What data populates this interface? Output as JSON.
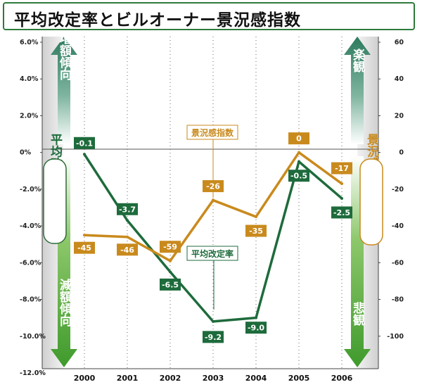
{
  "title": "平均改定率とビルオーナー景況感指数",
  "chart_data": {
    "type": "line",
    "categories": [
      "2000",
      "2001",
      "2002",
      "2003",
      "2004",
      "2005",
      "2006"
    ],
    "series": [
      {
        "name": "平均改定率",
        "axis": "left",
        "color": "#1e6b3c",
        "values": [
          -0.1,
          -3.7,
          -6.5,
          -9.2,
          -9.0,
          -0.5,
          -2.5
        ],
        "labels": [
          "-0.1",
          "-3.7",
          "-6.5",
          "-9.2",
          "-9.0",
          "-0.5",
          "-2.5"
        ]
      },
      {
        "name": "景況感指数",
        "axis": "right",
        "color": "#c98a1d",
        "values": [
          -45,
          -46,
          -59,
          -26,
          -35,
          0,
          -17
        ],
        "labels": [
          "-45",
          "-46",
          "-59",
          "-26",
          "-35",
          "0",
          "-17"
        ]
      }
    ],
    "left_axis": {
      "ticks": [
        "6.0%",
        "4.0%",
        "2.0%",
        "0%",
        "-2.0%",
        "-4.0%",
        "-6.0%",
        "-8.0%",
        "-10.0%",
        "-12.0%"
      ],
      "values": [
        6,
        4,
        2,
        0,
        -2,
        -4,
        -6,
        -8,
        -10,
        -12
      ],
      "ylim": [
        -12,
        6
      ]
    },
    "right_axis": {
      "ticks": [
        "60",
        "40",
        "20",
        "0",
        "-20",
        "-40",
        "-60",
        "-80",
        "-100"
      ],
      "values": [
        60,
        40,
        20,
        0,
        -20,
        -40,
        -60,
        -80,
        -100
      ],
      "ylim": [
        -120,
        60
      ]
    },
    "annotations": {
      "left_up": "増額傾向",
      "left_down": "減額傾向",
      "left_series_label": "平均改定率",
      "right_up": "楽観",
      "right_down": "悲観",
      "right_series_label": "景況感指数"
    }
  }
}
